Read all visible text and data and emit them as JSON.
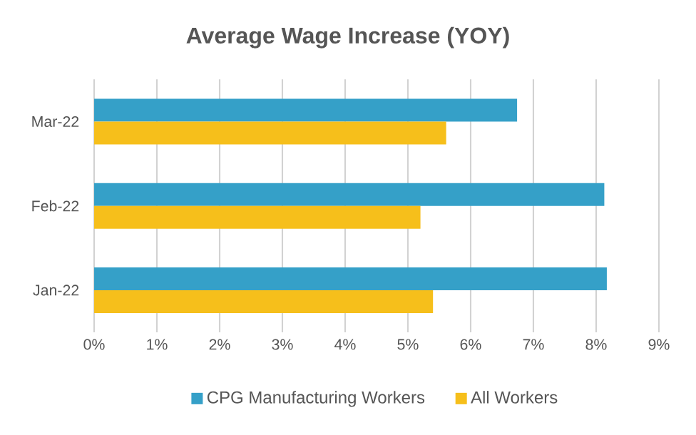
{
  "chart_data": {
    "type": "bar",
    "orientation": "horizontal",
    "title": "Average Wage Increase (YOY)",
    "categories": [
      "Mar-22",
      "Feb-22",
      "Jan-22"
    ],
    "series": [
      {
        "name": "CPG Manufacturing Workers",
        "color": "#35a0c8",
        "values": [
          6.74,
          8.13,
          8.17
        ]
      },
      {
        "name": "All Workers",
        "color": "#f6bf1b",
        "values": [
          5.61,
          5.2,
          5.4
        ]
      }
    ],
    "xlim": [
      0,
      9
    ],
    "xticks": [
      {
        "value": 0,
        "label": "0%"
      },
      {
        "value": 1,
        "label": "1%"
      },
      {
        "value": 2,
        "label": "2%"
      },
      {
        "value": 3,
        "label": "3%"
      },
      {
        "value": 4,
        "label": "4%"
      },
      {
        "value": 5,
        "label": "5%"
      },
      {
        "value": 6,
        "label": "6%"
      },
      {
        "value": 7,
        "label": "7%"
      },
      {
        "value": 8,
        "label": "8%"
      },
      {
        "value": 9,
        "label": "9%"
      }
    ],
    "grid": "x",
    "legend": "bottom"
  }
}
